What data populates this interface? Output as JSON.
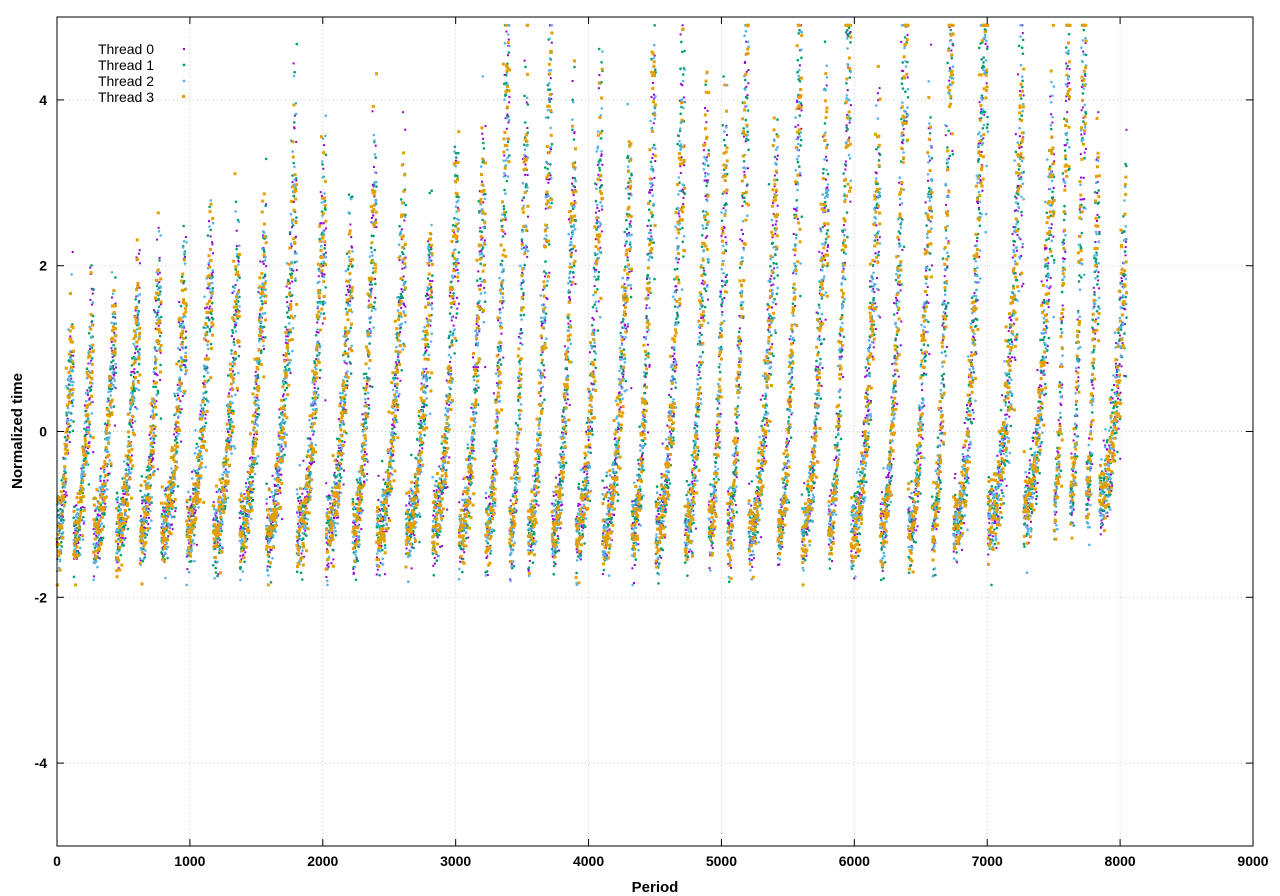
{
  "chart_data": {
    "type": "scatter",
    "title": "",
    "xlabel": "Period",
    "ylabel": "Normalized time",
    "xlim": [
      0,
      9000
    ],
    "ylim": [
      -5,
      5
    ],
    "xticks": [
      0,
      1000,
      2000,
      3000,
      4000,
      5000,
      6000,
      7000,
      8000,
      9000
    ],
    "yticks": [
      -4,
      -2,
      0,
      2,
      4
    ],
    "grid": true,
    "legend": "top-left",
    "point_count_per_series": 8050,
    "cycle_peaks": [
      [
        100,
        0.8
      ],
      [
        250,
        0.9
      ],
      [
        420,
        1.0
      ],
      [
        600,
        1.2
      ],
      [
        760,
        1.5
      ],
      [
        950,
        1.5
      ],
      [
        1150,
        1.8
      ],
      [
        1350,
        1.6
      ],
      [
        1550,
        2.0
      ],
      [
        1780,
        2.7
      ],
      [
        2000,
        2.5
      ],
      [
        2200,
        1.8
      ],
      [
        2380,
        2.7
      ],
      [
        2600,
        2.2
      ],
      [
        2800,
        1.8
      ],
      [
        3000,
        2.5
      ],
      [
        3200,
        2.6
      ],
      [
        3380,
        4.0
      ],
      [
        3520,
        3.2
      ],
      [
        3700,
        3.6
      ],
      [
        3880,
        2.8
      ],
      [
        4080,
        3.0
      ],
      [
        4300,
        2.5
      ],
      [
        4480,
        3.5
      ],
      [
        4700,
        3.4
      ],
      [
        4880,
        3.0
      ],
      [
        5020,
        2.8
      ],
      [
        5180,
        4.0
      ],
      [
        5400,
        2.6
      ],
      [
        5580,
        3.9
      ],
      [
        5780,
        3.0
      ],
      [
        5950,
        4.3
      ],
      [
        6170,
        2.8
      ],
      [
        6380,
        4.9
      ],
      [
        6560,
        2.8
      ],
      [
        6720,
        4.7
      ],
      [
        6980,
        4.8
      ],
      [
        7250,
        3.5
      ],
      [
        7480,
        3.0
      ],
      [
        7600,
        4.8
      ],
      [
        7720,
        4.1
      ],
      [
        7820,
        2.5
      ],
      [
        8050,
        2.5
      ]
    ],
    "series": [
      {
        "name": "Thread 0",
        "color": "#9400d3",
        "marker": "plus"
      },
      {
        "name": "Thread 1",
        "color": "#009e73",
        "marker": "cross"
      },
      {
        "name": "Thread 2",
        "color": "#56b4e9",
        "marker": "dot"
      },
      {
        "name": "Thread 3",
        "color": "#e69f00",
        "marker": "square"
      }
    ]
  }
}
